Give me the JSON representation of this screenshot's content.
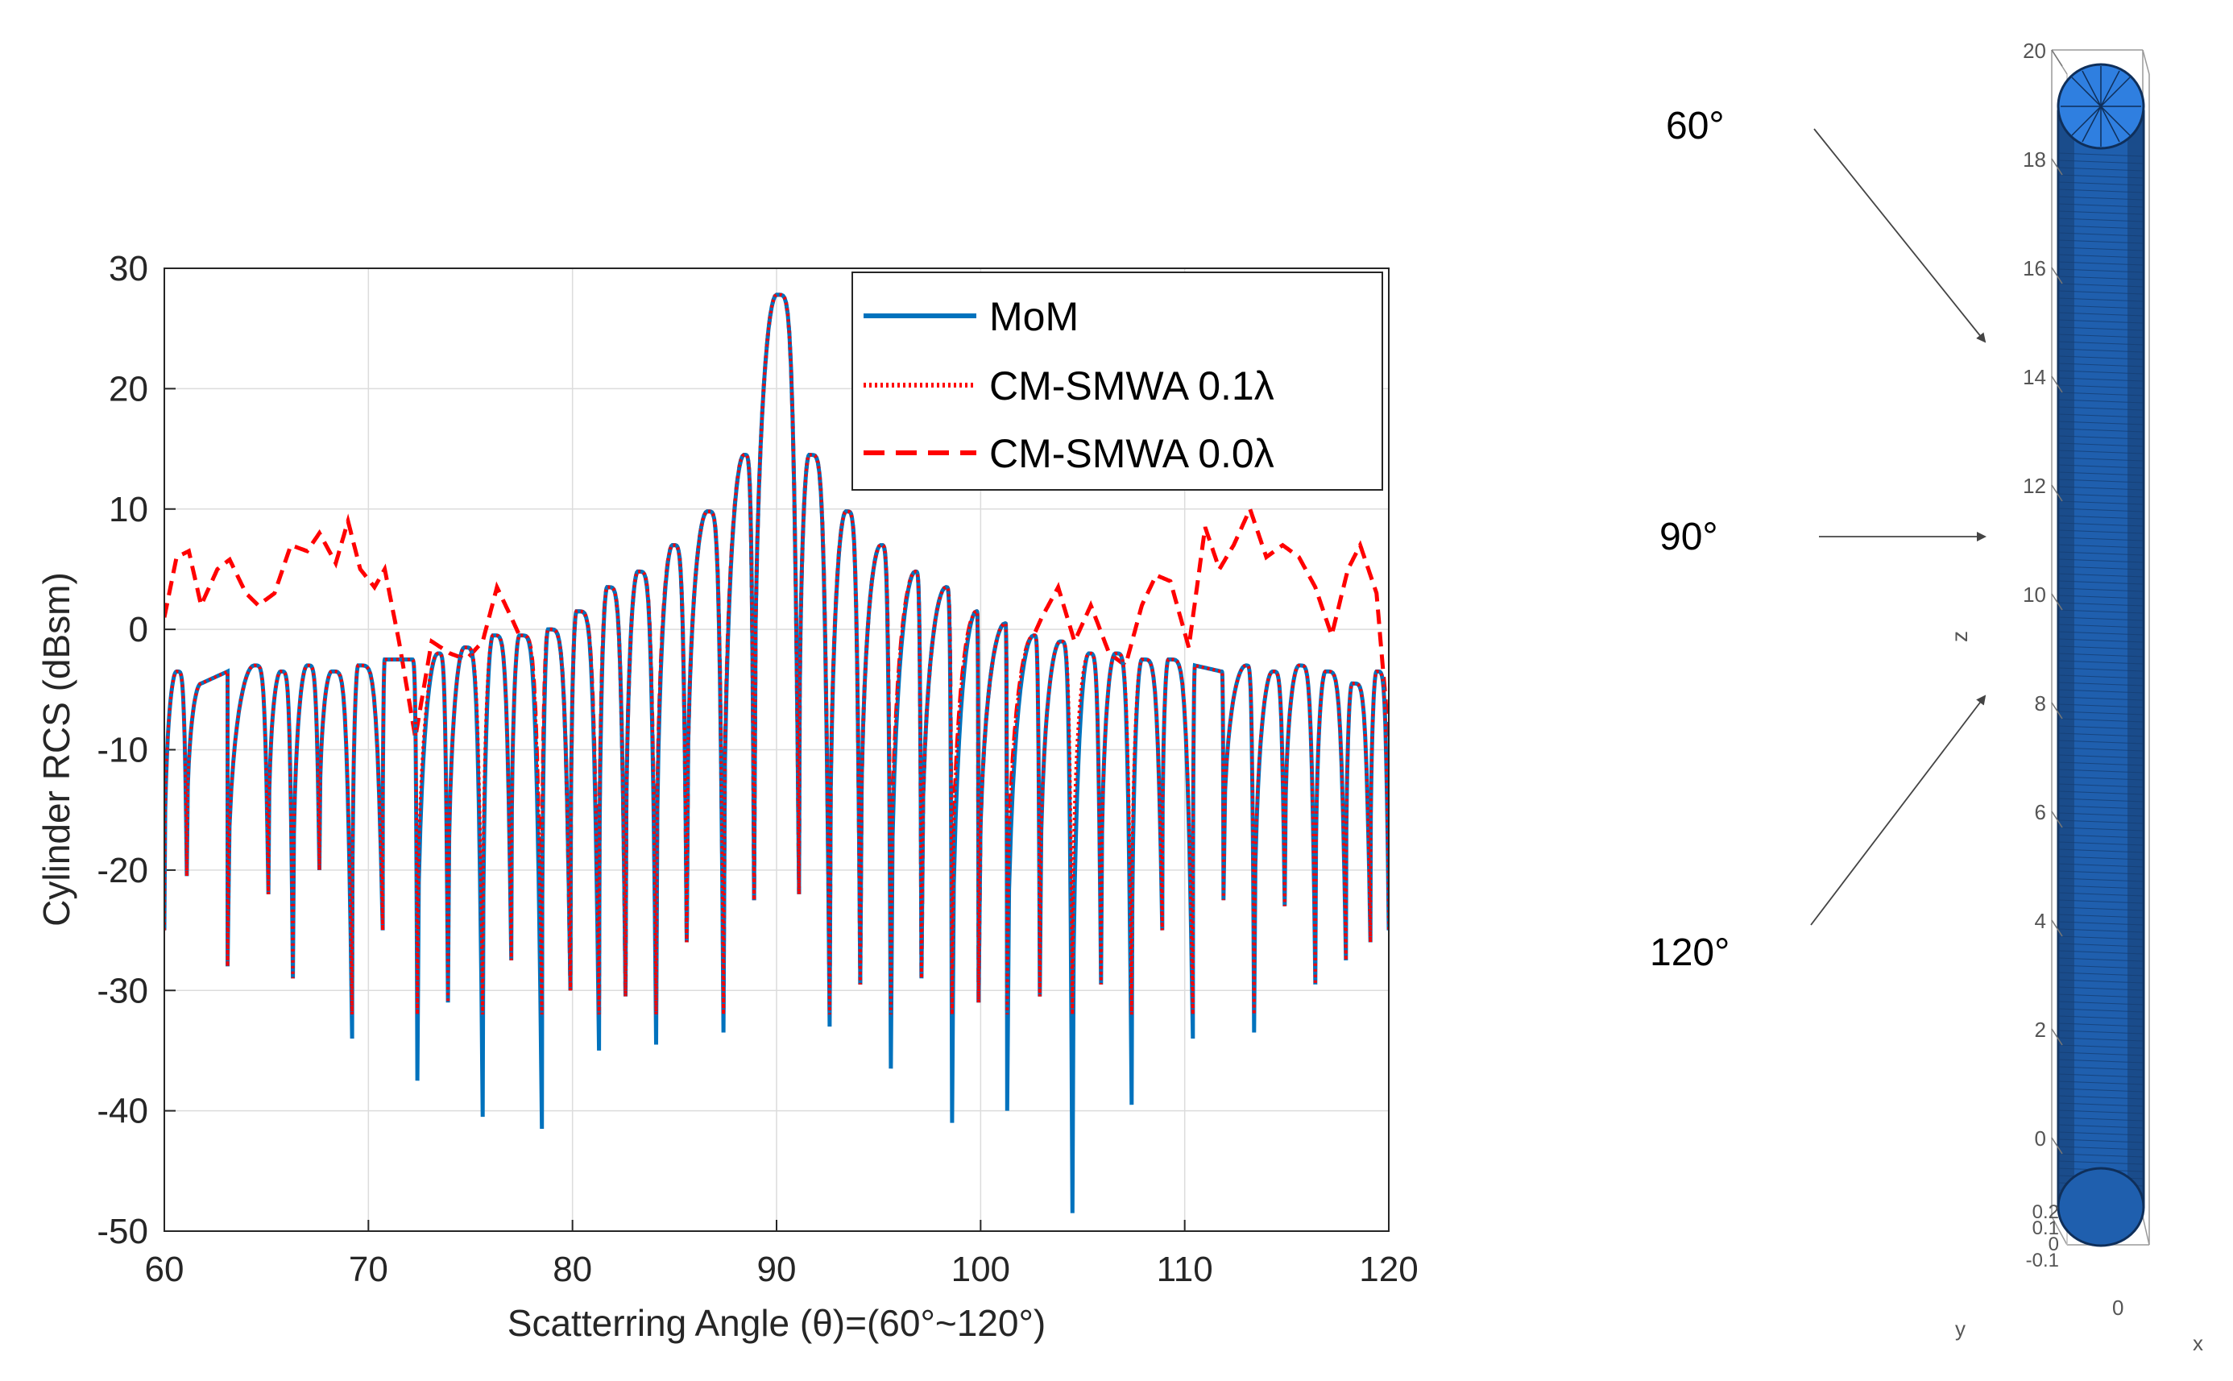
{
  "chart_data": {
    "type": "line",
    "title": "",
    "xlabel": "Scatterring Angle (θ)=(60°~120°)",
    "ylabel": "Cylinder RCS (dBsm)",
    "xlim": [
      60,
      120
    ],
    "ylim": [
      -50,
      30
    ],
    "x_ticks": [
      60,
      70,
      80,
      90,
      100,
      110,
      120
    ],
    "y_ticks": [
      30,
      20,
      10,
      0,
      -10,
      -20,
      -30,
      -40,
      -50
    ],
    "x_tick_labels": [
      "60",
      "70",
      "80",
      "90",
      "100",
      "110",
      "120"
    ],
    "y_tick_labels": [
      "30",
      "20",
      "10",
      "0",
      "-10",
      "-20",
      "-30",
      "-40",
      "-50"
    ],
    "grid": true,
    "legend_position": "top-right",
    "main_lobe": {
      "angle": 90,
      "peak": 27.8
    },
    "series": [
      {
        "name": "MoM",
        "legend_label": "MoM",
        "style": "solid",
        "color": "#0072BD",
        "side_lobes_left": [
          {
            "angle": 88.4,
            "peak": 14.5
          },
          {
            "angle": 86.6,
            "peak": 9.8
          },
          {
            "angle": 84.9,
            "peak": 7.0
          },
          {
            "angle": 83.2,
            "peak": 4.8
          },
          {
            "angle": 81.7,
            "peak": 3.5
          },
          {
            "angle": 80.2,
            "peak": 1.5
          },
          {
            "angle": 78.8,
            "peak": 0.0
          },
          {
            "angle": 77.4,
            "peak": -0.5
          },
          {
            "angle": 76.1,
            "peak": -0.5
          },
          {
            "angle": 74.7,
            "peak": -1.5
          },
          {
            "angle": 73.4,
            "peak": -2.0
          },
          {
            "angle": 72.1,
            "peak": -2.5
          },
          {
            "angle": 70.8,
            "peak": -2.5
          },
          {
            "angle": 69.5,
            "peak": -3.0
          },
          {
            "angle": 68.2,
            "peak": -3.5
          },
          {
            "angle": 67.0,
            "peak": -3.0
          },
          {
            "angle": 65.7,
            "peak": -3.5
          },
          {
            "angle": 64.4,
            "peak": -3.0
          },
          {
            "angle": 63.1,
            "peak": -3.5
          },
          {
            "angle": 61.8,
            "peak": -4.5
          },
          {
            "angle": 60.6,
            "peak": -3.5
          }
        ],
        "side_lobes_right": [
          {
            "angle": 91.6,
            "peak": 14.5
          },
          {
            "angle": 93.4,
            "peak": 9.8
          },
          {
            "angle": 95.1,
            "peak": 7.0
          },
          {
            "angle": 96.8,
            "peak": 4.8
          },
          {
            "angle": 98.3,
            "peak": 3.5
          },
          {
            "angle": 99.8,
            "peak": 1.5
          },
          {
            "angle": 101.2,
            "peak": 0.5
          },
          {
            "angle": 102.6,
            "peak": -0.5
          },
          {
            "angle": 103.9,
            "peak": -1.0
          },
          {
            "angle": 105.3,
            "peak": -2.0
          },
          {
            "angle": 106.6,
            "peak": -2.0
          },
          {
            "angle": 107.9,
            "peak": -2.5
          },
          {
            "angle": 109.2,
            "peak": -2.5
          },
          {
            "angle": 110.5,
            "peak": -3.0
          },
          {
            "angle": 111.8,
            "peak": -3.5
          },
          {
            "angle": 113.0,
            "peak": -3.0
          },
          {
            "angle": 114.3,
            "peak": -3.5
          },
          {
            "angle": 115.6,
            "peak": -3.0
          },
          {
            "angle": 116.9,
            "peak": -3.5
          },
          {
            "angle": 118.2,
            "peak": -4.5
          },
          {
            "angle": 119.4,
            "peak": -3.5
          }
        ],
        "nulls": [
          {
            "angle": 61.1,
            "value": -20.5
          },
          {
            "angle": 63.1,
            "value": -28.0
          },
          {
            "angle": 65.1,
            "value": -22.0
          },
          {
            "angle": 66.3,
            "value": -29.0
          },
          {
            "angle": 67.6,
            "value": -20.0
          },
          {
            "angle": 69.2,
            "value": -34.0
          },
          {
            "angle": 70.7,
            "value": -25.0
          },
          {
            "angle": 72.4,
            "value": -37.5
          },
          {
            "angle": 73.9,
            "value": -31.0
          },
          {
            "angle": 75.6,
            "value": -40.5
          },
          {
            "angle": 77.0,
            "value": -27.5
          },
          {
            "angle": 78.5,
            "value": -41.5
          },
          {
            "angle": 79.9,
            "value": -30.0
          },
          {
            "angle": 81.3,
            "value": -35.0
          },
          {
            "angle": 82.6,
            "value": -30.5
          },
          {
            "angle": 84.1,
            "value": -34.5
          },
          {
            "angle": 85.6,
            "value": -26.0
          },
          {
            "angle": 87.4,
            "value": -33.5
          },
          {
            "angle": 88.9,
            "value": -22.5
          },
          {
            "angle": 91.1,
            "value": -22.0
          },
          {
            "angle": 92.6,
            "value": -33.0
          },
          {
            "angle": 94.1,
            "value": -29.5
          },
          {
            "angle": 95.6,
            "value": -36.5
          },
          {
            "angle": 97.1,
            "value": -29.0
          },
          {
            "angle": 98.6,
            "value": -41.0
          },
          {
            "angle": 99.9,
            "value": -31.0
          },
          {
            "angle": 101.3,
            "value": -40.0
          },
          {
            "angle": 102.9,
            "value": -30.5
          },
          {
            "angle": 104.5,
            "value": -48.5
          },
          {
            "angle": 105.9,
            "value": -29.5
          },
          {
            "angle": 107.4,
            "value": -39.5
          },
          {
            "angle": 108.9,
            "value": -25.0
          },
          {
            "angle": 110.4,
            "value": -34.0
          },
          {
            "angle": 111.9,
            "value": -22.5
          },
          {
            "angle": 113.4,
            "value": -33.5
          },
          {
            "angle": 114.9,
            "value": -23.0
          },
          {
            "angle": 116.4,
            "value": -29.5
          },
          {
            "angle": 117.9,
            "value": -27.5
          },
          {
            "angle": 119.1,
            "value": -26.0
          }
        ]
      },
      {
        "name": "CM-SMWA 0.1λ",
        "legend_label": "CM-SMWA 0.1λ",
        "style": "dotted",
        "color": "#FF0000",
        "note": "closely follows MoM; shallower nulls"
      },
      {
        "name": "CM-SMWA 0.0λ",
        "legend_label": "CM-SMWA 0.0λ",
        "style": "dashed",
        "color": "#FF0000",
        "note": "elevated floor between about 60-77 and 103-120",
        "floor_points": [
          {
            "angle": 60.0,
            "value": 1.0
          },
          {
            "angle": 60.6,
            "value": 6.0
          },
          {
            "angle": 61.2,
            "value": 6.5
          },
          {
            "angle": 61.8,
            "value": 2.0
          },
          {
            "angle": 62.6,
            "value": 5.0
          },
          {
            "angle": 63.2,
            "value": 5.8
          },
          {
            "angle": 64.0,
            "value": 3.0
          },
          {
            "angle": 64.6,
            "value": 2.0
          },
          {
            "angle": 65.4,
            "value": 3.0
          },
          {
            "angle": 66.2,
            "value": 7.0
          },
          {
            "angle": 67.0,
            "value": 6.5
          },
          {
            "angle": 67.6,
            "value": 8.0
          },
          {
            "angle": 68.4,
            "value": 5.5
          },
          {
            "angle": 69.0,
            "value": 9.0
          },
          {
            "angle": 69.6,
            "value": 5.0
          },
          {
            "angle": 70.3,
            "value": 3.5
          },
          {
            "angle": 70.8,
            "value": 5.0
          },
          {
            "angle": 71.5,
            "value": -1.0
          },
          {
            "angle": 72.3,
            "value": -9.0
          },
          {
            "angle": 73.1,
            "value": -1.0
          },
          {
            "angle": 74.0,
            "value": -2.0
          },
          {
            "angle": 74.8,
            "value": -2.5
          },
          {
            "angle": 75.6,
            "value": -1.0
          },
          {
            "angle": 76.3,
            "value": 3.5
          },
          {
            "angle": 77.0,
            "value": 1.0
          }
        ],
        "floor_points_right": [
          {
            "angle": 103.0,
            "value": 1.0
          },
          {
            "angle": 103.8,
            "value": 3.5
          },
          {
            "angle": 104.6,
            "value": -1.0
          },
          {
            "angle": 105.4,
            "value": 2.0
          },
          {
            "angle": 106.3,
            "value": -2.0
          },
          {
            "angle": 107.1,
            "value": -3.0
          },
          {
            "angle": 107.9,
            "value": 2.0
          },
          {
            "angle": 108.6,
            "value": 4.5
          },
          {
            "angle": 109.3,
            "value": 4.0
          },
          {
            "angle": 110.2,
            "value": -1.5
          },
          {
            "angle": 111.0,
            "value": 8.5
          },
          {
            "angle": 111.7,
            "value": 5.0
          },
          {
            "angle": 112.4,
            "value": 7.0
          },
          {
            "angle": 113.2,
            "value": 10.0
          },
          {
            "angle": 114.0,
            "value": 6.0
          },
          {
            "angle": 114.8,
            "value": 7.0
          },
          {
            "angle": 115.6,
            "value": 6.0
          },
          {
            "angle": 116.4,
            "value": 3.5
          },
          {
            "angle": 117.2,
            "value": -0.5
          },
          {
            "angle": 118.0,
            "value": 5.0
          },
          {
            "angle": 118.6,
            "value": 7.0
          },
          {
            "angle": 119.4,
            "value": 3.0
          },
          {
            "angle": 120.0,
            "value": -9.0
          }
        ]
      }
    ]
  },
  "figure_right": {
    "z_axis_label": "z",
    "z_ticks": [
      "20",
      "18",
      "16",
      "14",
      "12",
      "10",
      "8",
      "6",
      "4",
      "2",
      "0"
    ],
    "small_ticks": [
      "0.2",
      "0.1",
      "0",
      "-0.1"
    ],
    "x_axis_label": "x",
    "y_axis_label": "y",
    "x_tick_zero": "0",
    "angle_labels": [
      "60°",
      "90°",
      "120°"
    ],
    "cylinder_color": "#1F5FAE",
    "cap_color": "#2F7FE0"
  }
}
